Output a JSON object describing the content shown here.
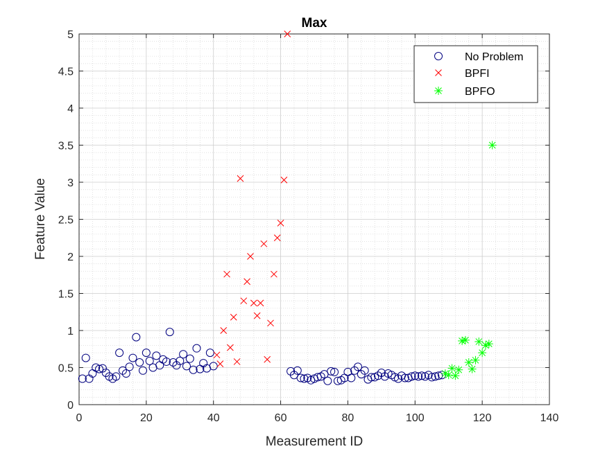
{
  "chart_data": {
    "type": "scatter",
    "title": "Max",
    "xlabel": "Measurement ID",
    "ylabel": "Feature Value",
    "xlim": [
      0,
      140
    ],
    "ylim": [
      0,
      5
    ],
    "xticks": [
      0,
      20,
      40,
      60,
      80,
      100,
      120,
      140
    ],
    "yticks": [
      0,
      0.5,
      1,
      1.5,
      2,
      2.5,
      3,
      3.5,
      4,
      4.5,
      5
    ],
    "xtick_labels": [
      "0",
      "20",
      "40",
      "60",
      "80",
      "100",
      "120",
      "140"
    ],
    "ytick_labels": [
      "0",
      "0.5",
      "1",
      "1.5",
      "2",
      "2.5",
      "3",
      "3.5",
      "4",
      "4.5",
      "5"
    ],
    "grid": true,
    "minor_grid": true,
    "legend_position": "top-right",
    "series": [
      {
        "name": "No Problem",
        "marker": "circle",
        "color": "#00007F",
        "points": [
          [
            1,
            0.35
          ],
          [
            2,
            0.63
          ],
          [
            3,
            0.35
          ],
          [
            4,
            0.42
          ],
          [
            5,
            0.5
          ],
          [
            6,
            0.48
          ],
          [
            7,
            0.49
          ],
          [
            8,
            0.43
          ],
          [
            9,
            0.38
          ],
          [
            10,
            0.35
          ],
          [
            11,
            0.38
          ],
          [
            12,
            0.7
          ],
          [
            13,
            0.46
          ],
          [
            14,
            0.42
          ],
          [
            15,
            0.51
          ],
          [
            16,
            0.63
          ],
          [
            17,
            0.91
          ],
          [
            18,
            0.57
          ],
          [
            19,
            0.46
          ],
          [
            20,
            0.7
          ],
          [
            21,
            0.59
          ],
          [
            22,
            0.5
          ],
          [
            23,
            0.66
          ],
          [
            24,
            0.53
          ],
          [
            25,
            0.61
          ],
          [
            26,
            0.58
          ],
          [
            27,
            0.98
          ],
          [
            28,
            0.57
          ],
          [
            29,
            0.53
          ],
          [
            30,
            0.59
          ],
          [
            31,
            0.68
          ],
          [
            32,
            0.52
          ],
          [
            33,
            0.62
          ],
          [
            34,
            0.47
          ],
          [
            35,
            0.76
          ],
          [
            36,
            0.48
          ],
          [
            37,
            0.56
          ],
          [
            38,
            0.49
          ],
          [
            39,
            0.7
          ],
          [
            40,
            0.52
          ],
          [
            63,
            0.45
          ],
          [
            64,
            0.4
          ],
          [
            65,
            0.46
          ],
          [
            66,
            0.36
          ],
          [
            67,
            0.35
          ],
          [
            68,
            0.36
          ],
          [
            69,
            0.33
          ],
          [
            70,
            0.35
          ],
          [
            71,
            0.37
          ],
          [
            72,
            0.38
          ],
          [
            73,
            0.41
          ],
          [
            74,
            0.32
          ],
          [
            75,
            0.45
          ],
          [
            76,
            0.44
          ],
          [
            77,
            0.32
          ],
          [
            78,
            0.33
          ],
          [
            79,
            0.36
          ],
          [
            80,
            0.44
          ],
          [
            81,
            0.36
          ],
          [
            82,
            0.46
          ],
          [
            83,
            0.51
          ],
          [
            84,
            0.41
          ],
          [
            85,
            0.46
          ],
          [
            86,
            0.34
          ],
          [
            87,
            0.37
          ],
          [
            88,
            0.37
          ],
          [
            89,
            0.39
          ],
          [
            90,
            0.43
          ],
          [
            91,
            0.38
          ],
          [
            92,
            0.42
          ],
          [
            93,
            0.4
          ],
          [
            94,
            0.37
          ],
          [
            95,
            0.35
          ],
          [
            96,
            0.39
          ],
          [
            97,
            0.36
          ],
          [
            98,
            0.36
          ],
          [
            99,
            0.38
          ],
          [
            100,
            0.39
          ],
          [
            101,
            0.38
          ],
          [
            102,
            0.39
          ],
          [
            103,
            0.38
          ],
          [
            104,
            0.4
          ],
          [
            105,
            0.37
          ],
          [
            106,
            0.38
          ],
          [
            107,
            0.39
          ],
          [
            108,
            0.4
          ]
        ]
      },
      {
        "name": "BPFI",
        "marker": "x",
        "color": "#FF0000",
        "points": [
          [
            41,
            0.67
          ],
          [
            42,
            0.55
          ],
          [
            43,
            1.0
          ],
          [
            44,
            1.76
          ],
          [
            45,
            0.77
          ],
          [
            46,
            1.18
          ],
          [
            47,
            0.58
          ],
          [
            48,
            3.05
          ],
          [
            49,
            1.4
          ],
          [
            50,
            1.66
          ],
          [
            51,
            2.0
          ],
          [
            52,
            1.37
          ],
          [
            53,
            1.2
          ],
          [
            54,
            1.37
          ],
          [
            55,
            2.17
          ],
          [
            56,
            0.61
          ],
          [
            57,
            1.1
          ],
          [
            58,
            1.76
          ],
          [
            59,
            2.25
          ],
          [
            60,
            2.45
          ],
          [
            61,
            3.03
          ],
          [
            62,
            5.0
          ]
        ]
      },
      {
        "name": "BPFO",
        "marker": "asterisk",
        "color": "#00FF00",
        "points": [
          [
            109,
            0.42
          ],
          [
            110,
            0.4
          ],
          [
            111,
            0.49
          ],
          [
            112,
            0.39
          ],
          [
            113,
            0.47
          ],
          [
            114,
            0.86
          ],
          [
            115,
            0.87
          ],
          [
            116,
            0.57
          ],
          [
            117,
            0.48
          ],
          [
            118,
            0.6
          ],
          [
            119,
            0.85
          ],
          [
            120,
            0.7
          ],
          [
            121,
            0.8
          ],
          [
            122,
            0.82
          ],
          [
            123,
            3.5
          ]
        ]
      }
    ]
  }
}
